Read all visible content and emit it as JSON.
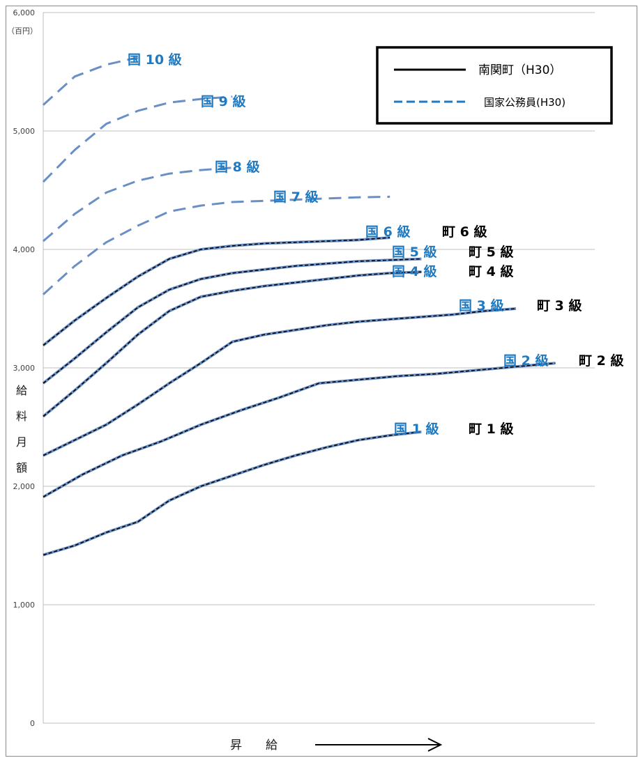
{
  "chart_data": {
    "type": "line",
    "ylim": [
      0,
      6000
    ],
    "y_ticks": [
      "0",
      "1,000",
      "2,000",
      "3,000",
      "4,000",
      "5,000",
      "6,000"
    ],
    "y_unit": "（百円）",
    "y_label_chars": [
      "給",
      "料",
      "月",
      "額"
    ],
    "x_label": "昇　　給",
    "grid": true,
    "legend": {
      "position": "top-right",
      "items": [
        {
          "label": "南関町（H30）",
          "style": "solid",
          "color": "#000000"
        },
        {
          "label": "国家公務員(H30)",
          "style": "dashed",
          "color": "#1f7ac1"
        }
      ]
    },
    "series": [
      {
        "kuni_label": "国 1 級",
        "machi_label": "町 1 級",
        "town": true,
        "x": [
          0,
          8,
          16,
          24,
          32,
          40,
          48,
          56,
          64,
          72,
          80,
          88,
          96
        ],
        "y": [
          1420,
          1500,
          1610,
          1700,
          1880,
          2000,
          2090,
          2180,
          2260,
          2330,
          2390,
          2430,
          2460
        ]
      },
      {
        "kuni_label": "国 2 級",
        "machi_label": "町 2 級",
        "town": true,
        "x": [
          0,
          10,
          20,
          30,
          40,
          50,
          60,
          70,
          80,
          90,
          100,
          110,
          120,
          130
        ],
        "y": [
          1910,
          2100,
          2260,
          2380,
          2520,
          2640,
          2750,
          2870,
          2900,
          2930,
          2950,
          2980,
          3010,
          3040
        ]
      },
      {
        "kuni_label": "国 3 級",
        "machi_label": "町 3 級",
        "town": true,
        "x": [
          0,
          8,
          16,
          24,
          32,
          40,
          48,
          56,
          64,
          72,
          80,
          88,
          96,
          104,
          112,
          120
        ],
        "y": [
          2260,
          2390,
          2520,
          2690,
          2870,
          3040,
          3220,
          3280,
          3320,
          3360,
          3390,
          3410,
          3430,
          3450,
          3480,
          3500
        ]
      },
      {
        "kuni_label": "国 4 級",
        "machi_label": "町 4 級",
        "town": true,
        "x": [
          0,
          8,
          16,
          24,
          32,
          40,
          48,
          56,
          64,
          72,
          80,
          88,
          96
        ],
        "y": [
          2590,
          2810,
          3040,
          3280,
          3480,
          3600,
          3650,
          3690,
          3720,
          3750,
          3780,
          3800,
          3810
        ]
      },
      {
        "kuni_label": "国 5 級",
        "machi_label": "町 5 級",
        "town": true,
        "x": [
          0,
          8,
          16,
          24,
          32,
          40,
          48,
          56,
          64,
          72,
          80,
          88,
          96
        ],
        "y": [
          2870,
          3080,
          3300,
          3510,
          3660,
          3750,
          3800,
          3830,
          3860,
          3880,
          3900,
          3910,
          3920
        ]
      },
      {
        "kuni_label": "国 6 級",
        "machi_label": "町 6 級",
        "town": true,
        "x": [
          0,
          8,
          16,
          24,
          32,
          40,
          48,
          56,
          64,
          72,
          80,
          88
        ],
        "y": [
          3190,
          3400,
          3590,
          3770,
          3920,
          4000,
          4030,
          4050,
          4060,
          4070,
          4080,
          4100
        ]
      },
      {
        "kuni_label": "国 7 級",
        "machi_label": "",
        "town": false,
        "x": [
          0,
          8,
          16,
          24,
          32,
          40,
          48,
          56,
          64,
          72,
          80,
          88
        ],
        "y": [
          3620,
          3860,
          4060,
          4200,
          4320,
          4370,
          4400,
          4410,
          4420,
          4430,
          4440,
          4445
        ]
      },
      {
        "kuni_label": "国 8 級",
        "machi_label": "",
        "town": false,
        "x": [
          0,
          8,
          16,
          24,
          32,
          40,
          48
        ],
        "y": [
          4070,
          4300,
          4480,
          4580,
          4640,
          4670,
          4690
        ]
      },
      {
        "kuni_label": "国 9 級",
        "machi_label": "",
        "town": false,
        "x": [
          0,
          8,
          16,
          24,
          32,
          40,
          48
        ],
        "y": [
          4570,
          4840,
          5060,
          5170,
          5240,
          5270,
          5290
        ]
      },
      {
        "kuni_label": "国 10 級",
        "machi_label": "",
        "town": false,
        "x": [
          0,
          8,
          16,
          24
        ],
        "y": [
          5220,
          5460,
          5560,
          5620
        ]
      }
    ]
  }
}
